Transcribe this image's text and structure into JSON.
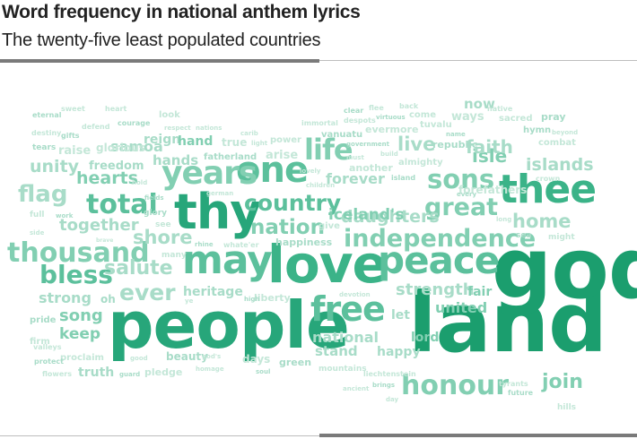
{
  "title": "Word frequency in national anthem lyrics",
  "subtitle": "The twenty-five least populated countries",
  "palette": [
    "#1b9e6e",
    "#27a67a",
    "#3bb388",
    "#5cc09c",
    "#82cfb2",
    "#a8dcc8",
    "#c4e7d8"
  ],
  "words": [
    {
      "text": "land",
      "weight": 100
    },
    {
      "text": "god",
      "weight": 96
    },
    {
      "text": "people",
      "weight": 92
    },
    {
      "text": "love",
      "weight": 70
    },
    {
      "text": "thy",
      "weight": 63
    },
    {
      "text": "may",
      "weight": 52
    },
    {
      "text": "peace",
      "weight": 52
    },
    {
      "text": "thee",
      "weight": 52
    },
    {
      "text": "one",
      "weight": 48
    },
    {
      "text": "years",
      "weight": 44
    },
    {
      "text": "free",
      "weight": 44
    },
    {
      "text": "life",
      "weight": 40
    },
    {
      "text": "honour",
      "weight": 36
    },
    {
      "text": "total",
      "weight": 36
    },
    {
      "text": "thousand",
      "weight": 34
    },
    {
      "text": "independence",
      "weight": 32
    },
    {
      "text": "country",
      "weight": 30
    },
    {
      "text": "sons",
      "weight": 32
    },
    {
      "text": "great",
      "weight": 30
    },
    {
      "text": "bless",
      "weight": 30
    },
    {
      "text": "flag",
      "weight": 28
    },
    {
      "text": "ever",
      "weight": 26
    },
    {
      "text": "nation",
      "weight": 26
    },
    {
      "text": "salute",
      "weight": 24
    },
    {
      "text": "shore",
      "weight": 22
    },
    {
      "text": "join",
      "weight": 24
    },
    {
      "text": "home",
      "weight": 22
    },
    {
      "text": "live",
      "weight": 22
    },
    {
      "text": "isle",
      "weight": 22
    },
    {
      "text": "faith",
      "weight": 22
    },
    {
      "text": "daughters",
      "weight": 20
    },
    {
      "text": "iceland's",
      "weight": 20
    },
    {
      "text": "islands",
      "weight": 18
    },
    {
      "text": "unity",
      "weight": 18
    },
    {
      "text": "hearts",
      "weight": 18
    },
    {
      "text": "together",
      "weight": 18
    },
    {
      "text": "strength",
      "weight": 18
    },
    {
      "text": "song",
      "weight": 18
    },
    {
      "text": "national",
      "weight": 16
    },
    {
      "text": "hands",
      "weight": 16
    },
    {
      "text": "keep",
      "weight": 16
    },
    {
      "text": "strong",
      "weight": 16
    },
    {
      "text": "forever",
      "weight": 16
    },
    {
      "text": "united",
      "weight": 16
    },
    {
      "text": "stand",
      "weight": 15
    },
    {
      "text": "happy",
      "weight": 15
    },
    {
      "text": "lord",
      "weight": 14
    },
    {
      "text": "samoa",
      "weight": 16
    },
    {
      "text": "reign",
      "weight": 14
    },
    {
      "text": "hand",
      "weight": 14
    },
    {
      "text": "heritage",
      "weight": 14
    },
    {
      "text": "let",
      "weight": 14
    },
    {
      "text": "fair",
      "weight": 14
    },
    {
      "text": "now",
      "weight": 14
    },
    {
      "text": "truth",
      "weight": 14
    },
    {
      "text": "beauty",
      "weight": 12
    },
    {
      "text": "true",
      "weight": 12
    },
    {
      "text": "arise",
      "weight": 12
    },
    {
      "text": "freedom",
      "weight": 12
    },
    {
      "text": "raise",
      "weight": 12
    },
    {
      "text": "glorious",
      "weight": 12
    },
    {
      "text": "oh",
      "weight": 12
    },
    {
      "text": "ways",
      "weight": 12
    },
    {
      "text": "forefathers",
      "weight": 12
    },
    {
      "text": "republic",
      "weight": 11
    },
    {
      "text": "evermore",
      "weight": 11
    },
    {
      "text": "another",
      "weight": 11
    },
    {
      "text": "happiness",
      "weight": 11
    },
    {
      "text": "liberty",
      "weight": 11
    },
    {
      "text": "days",
      "weight": 11
    },
    {
      "text": "green",
      "weight": 10
    },
    {
      "text": "pledge",
      "weight": 10
    },
    {
      "text": "proclaim",
      "weight": 10
    },
    {
      "text": "pride",
      "weight": 10
    },
    {
      "text": "firm",
      "weight": 10
    },
    {
      "text": "give",
      "weight": 10
    },
    {
      "text": "hymn",
      "weight": 10
    },
    {
      "text": "combat",
      "weight": 10
    },
    {
      "text": "sacred",
      "weight": 10
    },
    {
      "text": "pray",
      "weight": 10
    },
    {
      "text": "look",
      "weight": 10
    },
    {
      "text": "power",
      "weight": 10
    },
    {
      "text": "fatherland",
      "weight": 10
    },
    {
      "text": "tuvalu",
      "weight": 10
    },
    {
      "text": "come",
      "weight": 10
    },
    {
      "text": "vanuatu",
      "weight": 10
    },
    {
      "text": "almighty",
      "weight": 10
    },
    {
      "text": "mountains",
      "weight": 9
    },
    {
      "text": "tears",
      "weight": 9
    },
    {
      "text": "many",
      "weight": 9
    },
    {
      "text": "see",
      "weight": 9
    },
    {
      "text": "glory",
      "weight": 9
    },
    {
      "text": "defend",
      "weight": 8
    },
    {
      "text": "destiny",
      "weight": 8
    },
    {
      "text": "eternal",
      "weight": 8
    },
    {
      "text": "sweet",
      "weight": 8
    },
    {
      "text": "heart",
      "weight": 8
    },
    {
      "text": "courage",
      "weight": 8
    },
    {
      "text": "respect",
      "weight": 7
    },
    {
      "text": "nations",
      "weight": 7
    },
    {
      "text": "gifts",
      "weight": 8
    },
    {
      "text": "immortal",
      "weight": 8
    },
    {
      "text": "despots",
      "weight": 8
    },
    {
      "text": "clear",
      "weight": 8
    },
    {
      "text": "flee",
      "weight": 8
    },
    {
      "text": "back",
      "weight": 8
    },
    {
      "text": "virtuous",
      "weight": 7
    },
    {
      "text": "native",
      "weight": 8
    },
    {
      "text": "beyond",
      "weight": 7
    },
    {
      "text": "name",
      "weight": 7
    },
    {
      "text": "carib",
      "weight": 7
    },
    {
      "text": "light",
      "weight": 7
    },
    {
      "text": "government",
      "weight": 7
    },
    {
      "text": "must",
      "weight": 7
    },
    {
      "text": "build",
      "weight": 7
    },
    {
      "text": "island",
      "weight": 8
    },
    {
      "text": "lovely",
      "weight": 7
    },
    {
      "text": "children",
      "weight": 7
    },
    {
      "text": "every",
      "weight": 7
    },
    {
      "text": "crown",
      "weight": 8
    },
    {
      "text": "long",
      "weight": 7
    },
    {
      "text": "sea",
      "weight": 9
    },
    {
      "text": "might",
      "weight": 9
    },
    {
      "text": "hold",
      "weight": 7
    },
    {
      "text": "fields",
      "weight": 7
    },
    {
      "text": "german",
      "weight": 7
    },
    {
      "text": "full",
      "weight": 9
    },
    {
      "text": "work",
      "weight": 7
    },
    {
      "text": "side",
      "weight": 7
    },
    {
      "text": "brave",
      "weight": 6
    },
    {
      "text": "rhine",
      "weight": 7
    },
    {
      "text": "whate'er",
      "weight": 8
    },
    {
      "text": "devotion",
      "weight": 7
    },
    {
      "text": "high",
      "weight": 7
    },
    {
      "text": "ye",
      "weight": 7
    },
    {
      "text": "valleys",
      "weight": 8
    },
    {
      "text": "protect",
      "weight": 8
    },
    {
      "text": "flowers",
      "weight": 8
    },
    {
      "text": "good",
      "weight": 7
    },
    {
      "text": "guard",
      "weight": 7
    },
    {
      "text": "god's",
      "weight": 7
    },
    {
      "text": "homage",
      "weight": 7
    },
    {
      "text": "soul",
      "weight": 7
    },
    {
      "text": "liechtenstein",
      "weight": 8
    },
    {
      "text": "ancient",
      "weight": 7
    },
    {
      "text": "brings",
      "weight": 7
    },
    {
      "text": "day",
      "weight": 7
    },
    {
      "text": "tyrants",
      "weight": 8
    },
    {
      "text": "future",
      "weight": 8
    },
    {
      "text": "hills",
      "weight": 9
    }
  ]
}
